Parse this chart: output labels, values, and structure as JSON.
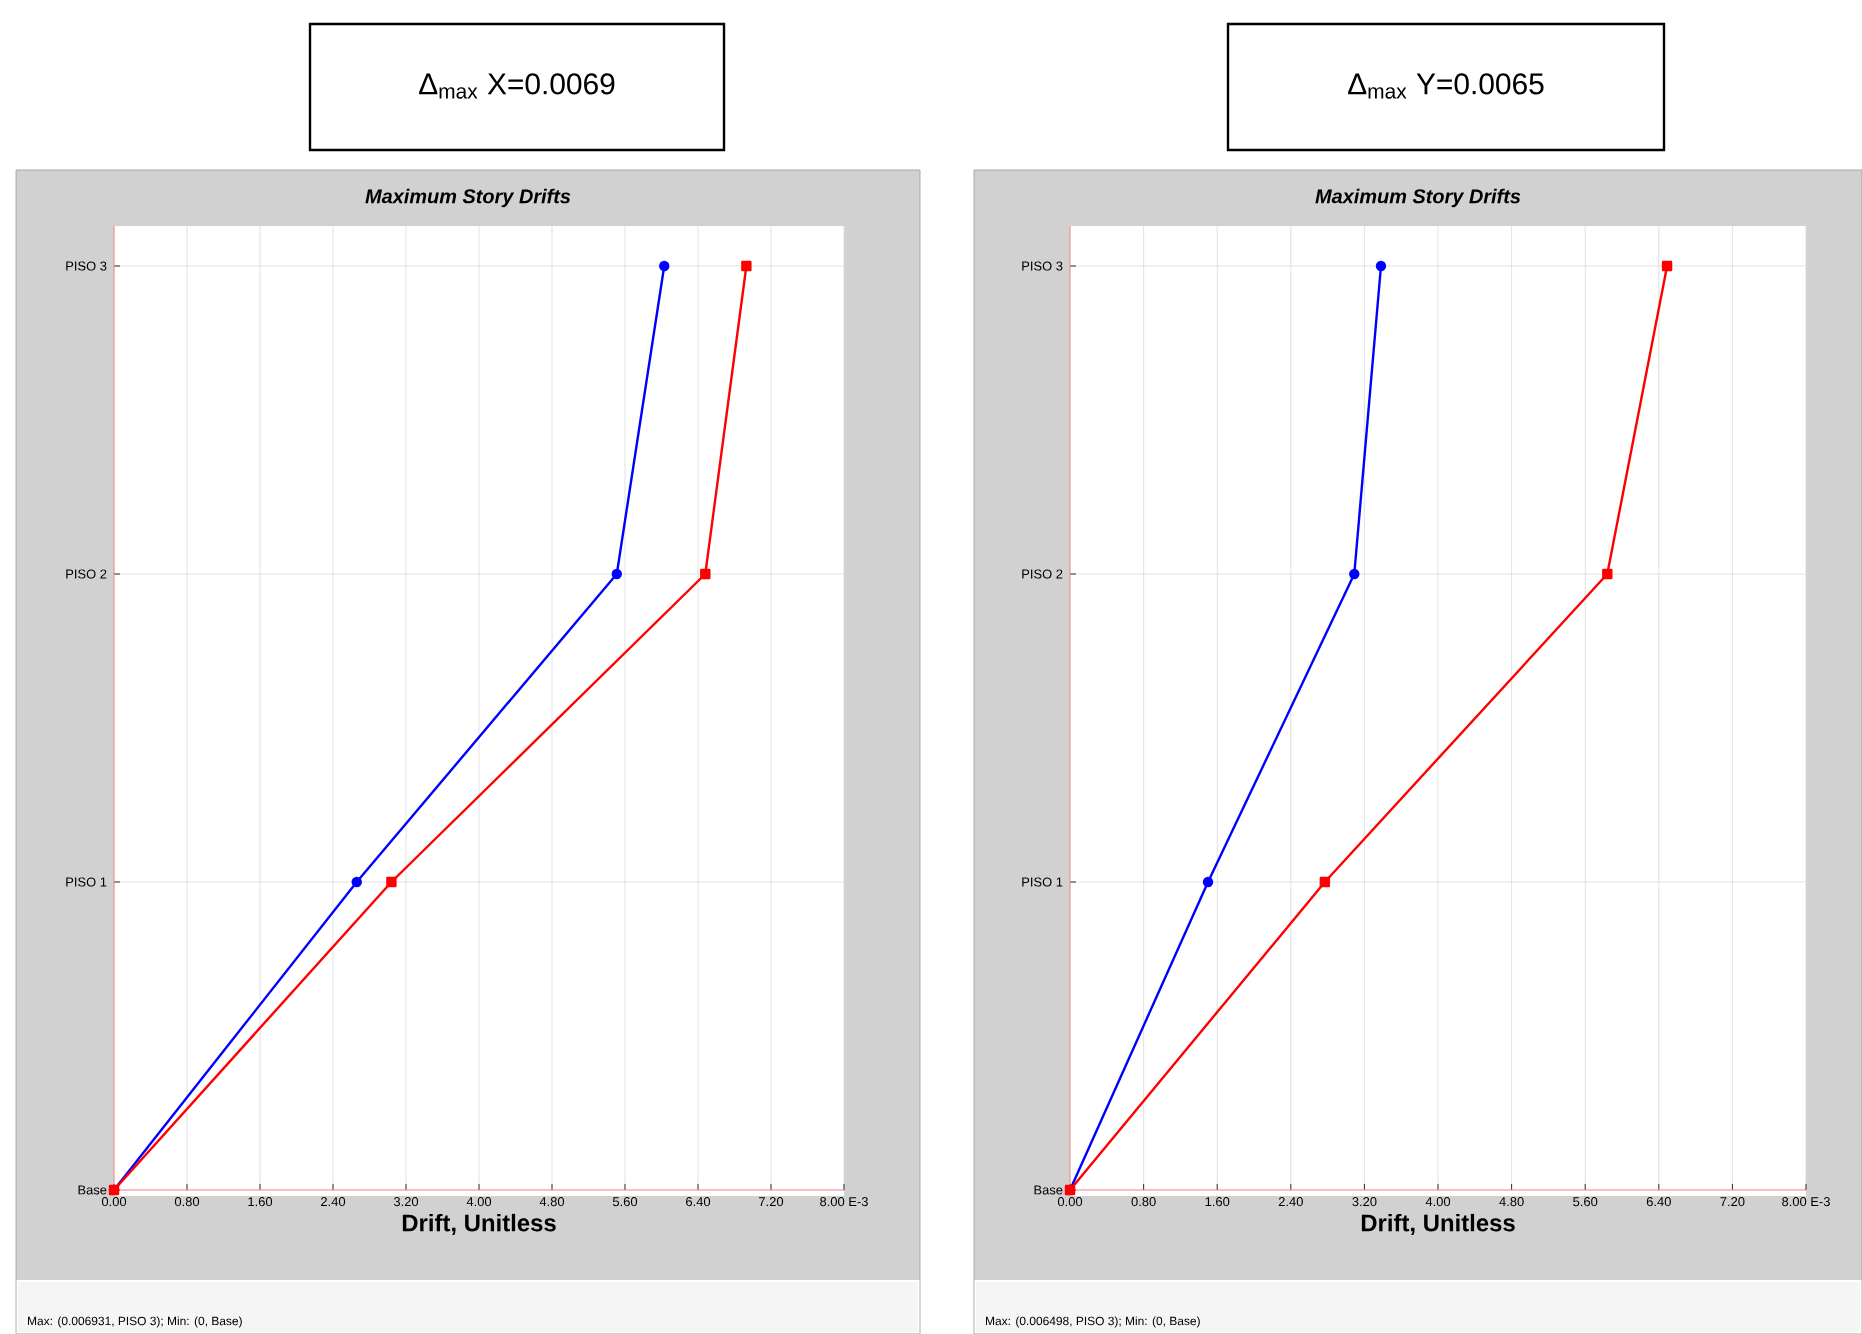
{
  "chart_data": [
    {
      "type": "line",
      "orientation": "horizontal",
      "title": "Maximum Story Drifts",
      "xlabel": "Drift, Unitless",
      "categories": [
        "PISO 3",
        "PISO 2",
        "PISO 1",
        "Base"
      ],
      "series": [
        {
          "color": "#0000ff",
          "marker": "circle",
          "values": [
            6.03,
            5.51,
            2.66,
            0
          ]
        },
        {
          "color": "#ff0000",
          "marker": "square",
          "values": [
            6.93,
            6.48,
            3.04,
            0
          ]
        }
      ],
      "xlim": [
        0,
        8
      ],
      "xticks": [
        {
          "value": 0,
          "label": "0.00"
        },
        {
          "value": 0.8,
          "label": "0.80"
        },
        {
          "value": 1.6,
          "label": "1.60"
        },
        {
          "value": 2.4,
          "label": "2.40"
        },
        {
          "value": 3.2,
          "label": "3.20"
        },
        {
          "value": 4,
          "label": "4.00"
        },
        {
          "value": 4.8,
          "label": "4.80"
        },
        {
          "value": 5.6,
          "label": "5.60"
        },
        {
          "value": 6.4,
          "label": "6.40"
        },
        {
          "value": 7.2,
          "label": "7.20"
        },
        {
          "value": 8,
          "label": "8.00 E-3"
        }
      ],
      "grid": true,
      "line_style": "solid",
      "annotations": [
        "Δ$_{max}$ X=0.0069",
        "Max: (0.006931, PISO 3);   Min: (0, Base)"
      ]
    },
    {
      "type": "line",
      "orientation": "horizontal",
      "title": "Maximum Story Drifts",
      "xlabel": "Drift, Unitless",
      "categories": [
        "PISO 3",
        "PISO 2",
        "PISO 1",
        "Base"
      ],
      "series": [
        {
          "color": "#0000ff",
          "marker": "circle",
          "values": [
            3.38,
            3.09,
            1.5,
            0
          ]
        },
        {
          "color": "#ff0000",
          "marker": "square",
          "values": [
            6.49,
            5.84,
            2.77,
            0
          ]
        }
      ],
      "xlim": [
        0,
        8
      ],
      "xticks": [
        {
          "value": 0,
          "label": "0.00"
        },
        {
          "value": 0.8,
          "label": "0.80"
        },
        {
          "value": 1.6,
          "label": "1.60"
        },
        {
          "value": 2.4,
          "label": "2.40"
        },
        {
          "value": 3.2,
          "label": "3.20"
        },
        {
          "value": 4,
          "label": "4.00"
        },
        {
          "value": 4.8,
          "label": "4.80"
        },
        {
          "value": 5.6,
          "label": "5.60"
        },
        {
          "value": 6.4,
          "label": "6.40"
        },
        {
          "value": 7.2,
          "label": "7.20"
        },
        {
          "value": 8,
          "label": "8.00 E-3"
        }
      ],
      "grid": true,
      "line_style": "solid",
      "annotations": [
        "Δ$_{max}$ Y=0.0065",
        "Max: (0.006498, PISO 3);   Min: (0, Base)"
      ]
    }
  ]
}
